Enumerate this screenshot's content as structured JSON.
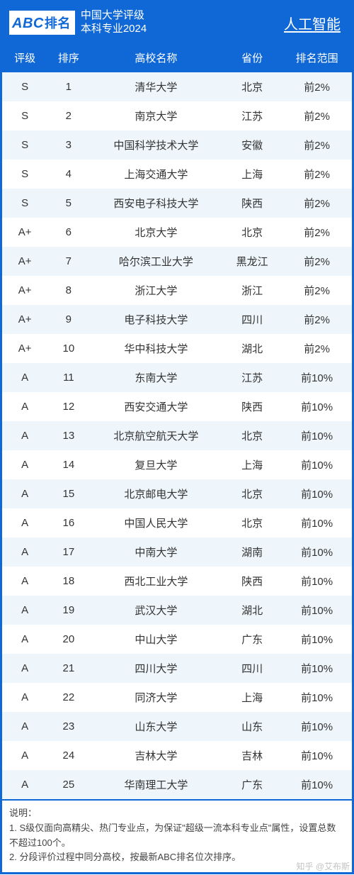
{
  "header": {
    "logo_abc": "ABC",
    "logo_rank": "排名",
    "line1": "中国大学评级",
    "line2": "本科专业2024",
    "category": "人工智能"
  },
  "colors": {
    "brand": "#1068d6",
    "row_even": "#eef6fb",
    "row_odd": "#ffffff",
    "text": "#333333"
  },
  "columns": [
    "评级",
    "排序",
    "高校名称",
    "省份",
    "排名范围"
  ],
  "col_widths_pct": [
    13,
    12,
    38,
    17,
    20
  ],
  "rows": [
    {
      "grade": "S",
      "rank": 1,
      "name": "清华大学",
      "prov": "北京",
      "range": "前2%"
    },
    {
      "grade": "S",
      "rank": 2,
      "name": "南京大学",
      "prov": "江苏",
      "range": "前2%"
    },
    {
      "grade": "S",
      "rank": 3,
      "name": "中国科学技术大学",
      "prov": "安徽",
      "range": "前2%"
    },
    {
      "grade": "S",
      "rank": 4,
      "name": "上海交通大学",
      "prov": "上海",
      "range": "前2%"
    },
    {
      "grade": "S",
      "rank": 5,
      "name": "西安电子科技大学",
      "prov": "陕西",
      "range": "前2%"
    },
    {
      "grade": "A+",
      "rank": 6,
      "name": "北京大学",
      "prov": "北京",
      "range": "前2%"
    },
    {
      "grade": "A+",
      "rank": 7,
      "name": "哈尔滨工业大学",
      "prov": "黑龙江",
      "range": "前2%"
    },
    {
      "grade": "A+",
      "rank": 8,
      "name": "浙江大学",
      "prov": "浙江",
      "range": "前2%"
    },
    {
      "grade": "A+",
      "rank": 9,
      "name": "电子科技大学",
      "prov": "四川",
      "range": "前2%"
    },
    {
      "grade": "A+",
      "rank": 10,
      "name": "华中科技大学",
      "prov": "湖北",
      "range": "前2%"
    },
    {
      "grade": "A",
      "rank": 11,
      "name": "东南大学",
      "prov": "江苏",
      "range": "前10%"
    },
    {
      "grade": "A",
      "rank": 12,
      "name": "西安交通大学",
      "prov": "陕西",
      "range": "前10%"
    },
    {
      "grade": "A",
      "rank": 13,
      "name": "北京航空航天大学",
      "prov": "北京",
      "range": "前10%"
    },
    {
      "grade": "A",
      "rank": 14,
      "name": "复旦大学",
      "prov": "上海",
      "range": "前10%"
    },
    {
      "grade": "A",
      "rank": 15,
      "name": "北京邮电大学",
      "prov": "北京",
      "range": "前10%"
    },
    {
      "grade": "A",
      "rank": 16,
      "name": "中国人民大学",
      "prov": "北京",
      "range": "前10%"
    },
    {
      "grade": "A",
      "rank": 17,
      "name": "中南大学",
      "prov": "湖南",
      "range": "前10%"
    },
    {
      "grade": "A",
      "rank": 18,
      "name": "西北工业大学",
      "prov": "陕西",
      "range": "前10%"
    },
    {
      "grade": "A",
      "rank": 19,
      "name": "武汉大学",
      "prov": "湖北",
      "range": "前10%"
    },
    {
      "grade": "A",
      "rank": 20,
      "name": "中山大学",
      "prov": "广东",
      "range": "前10%"
    },
    {
      "grade": "A",
      "rank": 21,
      "name": "四川大学",
      "prov": "四川",
      "range": "前10%"
    },
    {
      "grade": "A",
      "rank": 22,
      "name": "同济大学",
      "prov": "上海",
      "range": "前10%"
    },
    {
      "grade": "A",
      "rank": 23,
      "name": "山东大学",
      "prov": "山东",
      "range": "前10%"
    },
    {
      "grade": "A",
      "rank": 24,
      "name": "吉林大学",
      "prov": "吉林",
      "range": "前10%"
    },
    {
      "grade": "A",
      "rank": 25,
      "name": "华南理工大学",
      "prov": "广东",
      "range": "前10%"
    }
  ],
  "notes": {
    "title": "说明：",
    "items": [
      "1. S级仅面向高精尖、热门专业点，为保证\"超级一流本科专业点\"属性，设置总数不超过100个。",
      "2. 分段评价过程中同分高校，按最新ABC排名位次排序。"
    ]
  },
  "watermark": "知乎 @艾布斯"
}
